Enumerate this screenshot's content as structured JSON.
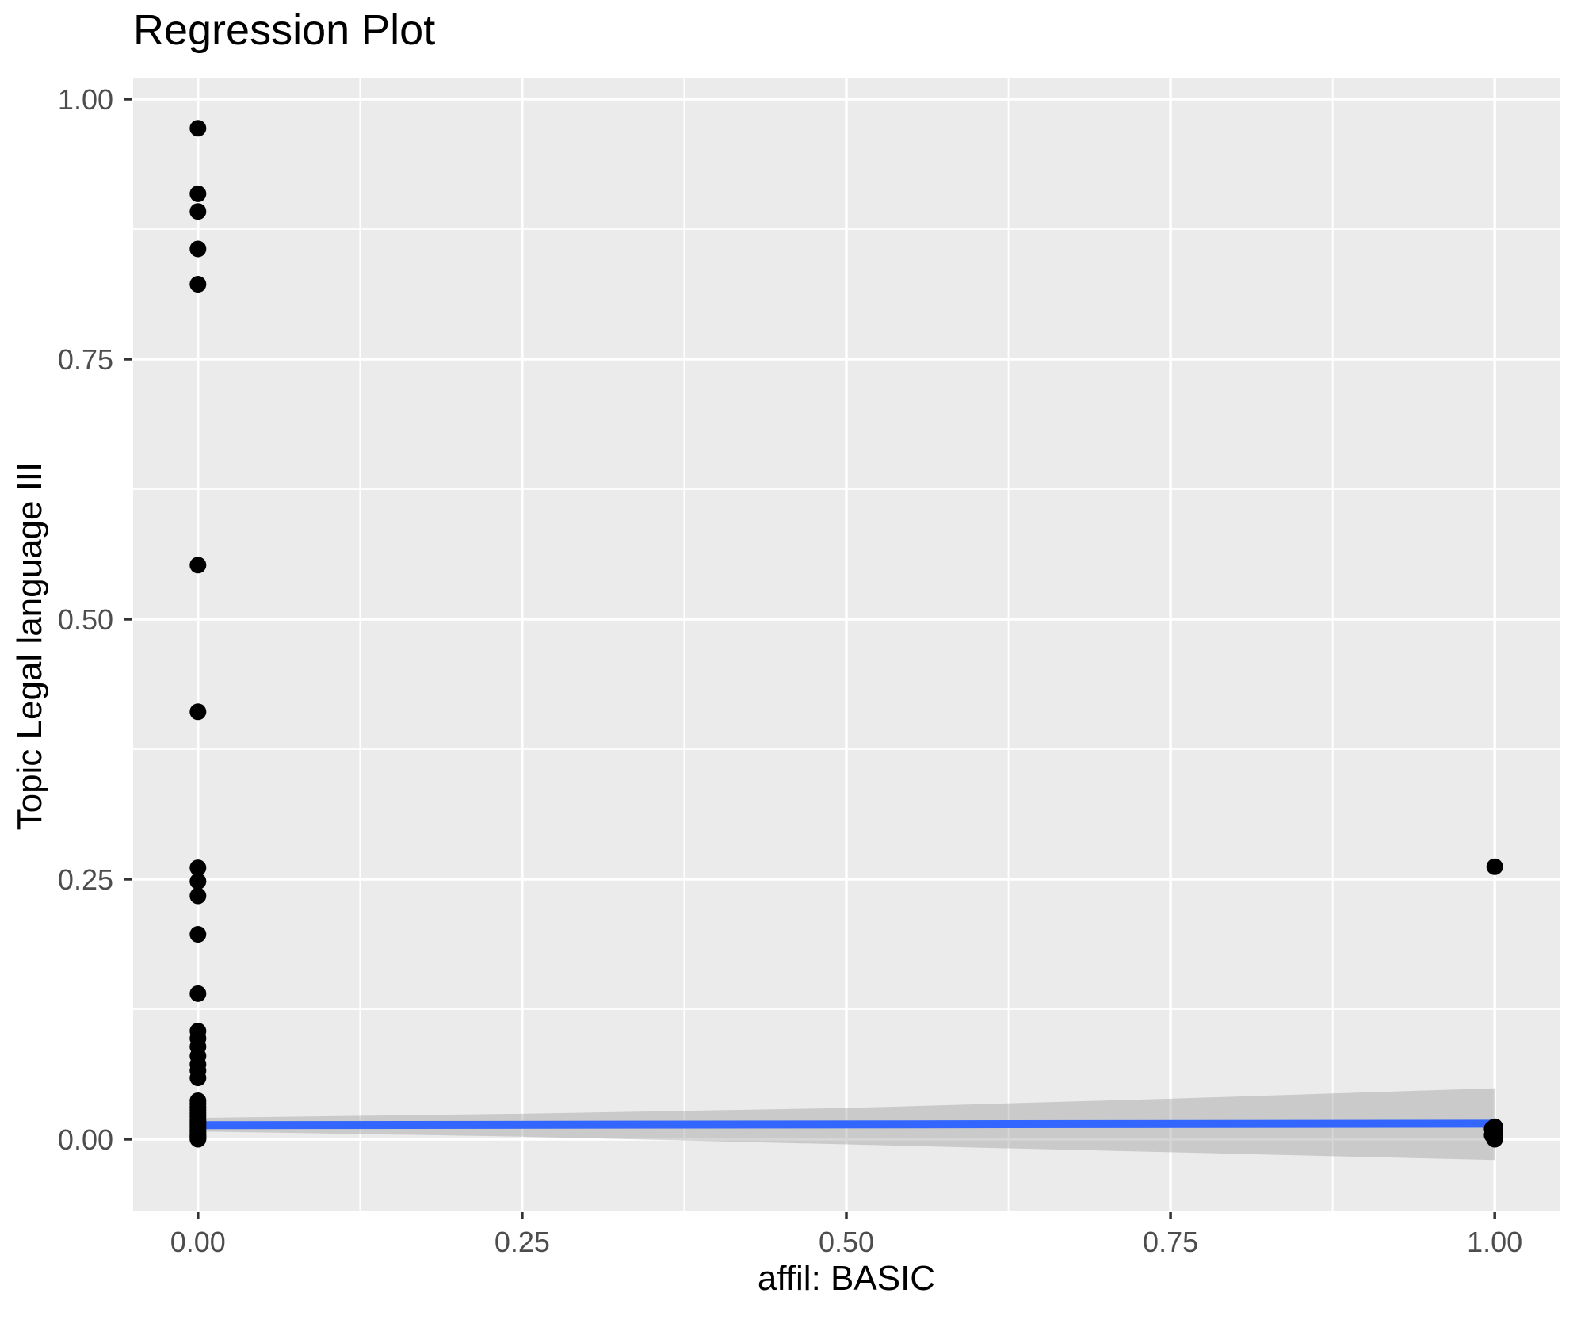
{
  "chart_data": {
    "type": "scatter",
    "title": "Regression Plot",
    "xlabel": "affil: BASIC",
    "ylabel": "Topic Legal language III",
    "xlim": [
      -0.05,
      1.05
    ],
    "ylim": [
      -0.0686,
      1.0206
    ],
    "x_ticks": [
      0.0,
      0.25,
      0.5,
      0.75,
      1.0
    ],
    "y_ticks": [
      0.0,
      0.25,
      0.5,
      0.75,
      1.0
    ],
    "x_tick_labels": [
      "0.00",
      "0.25",
      "0.50",
      "0.75",
      "1.00"
    ],
    "y_tick_labels": [
      "0.00",
      "0.25",
      "0.50",
      "0.75",
      "1.00"
    ],
    "grid": "major+minor",
    "legend": "none",
    "colors": {
      "panel_background": "#EBEBEB",
      "gridline": "#FFFFFF",
      "point": "#000000",
      "regression_line": "#3366FF",
      "confidence_ribbon": "rgba(153,153,153,0.4)",
      "tick_label": "#4D4D4D",
      "tick_mark": "#333333",
      "title_text": "#000000"
    },
    "series": [
      {
        "name": "observations",
        "type": "points",
        "color": "#000000",
        "point_radius": 10.5,
        "points": [
          [
            0,
            0.972
          ],
          [
            0,
            0.909
          ],
          [
            0,
            0.892
          ],
          [
            0,
            0.856
          ],
          [
            0,
            0.822
          ],
          [
            0,
            0.552
          ],
          [
            0,
            0.411
          ],
          [
            0,
            0.261
          ],
          [
            0,
            0.248
          ],
          [
            0,
            0.234
          ],
          [
            0,
            0.197
          ],
          [
            0,
            0.14
          ],
          [
            0,
            0.104
          ],
          [
            0,
            0.097
          ],
          [
            0,
            0.089
          ],
          [
            0,
            0.08
          ],
          [
            0,
            0.072
          ],
          [
            0,
            0.066
          ],
          [
            0,
            0.059
          ],
          [
            0,
            0.037
          ],
          [
            0,
            0.034
          ],
          [
            0,
            0.031
          ],
          [
            0,
            0.028
          ],
          [
            0,
            0.025
          ],
          [
            0,
            0.022
          ],
          [
            0,
            0.019
          ],
          [
            0,
            0.017
          ],
          [
            0,
            0.015
          ],
          [
            0,
            0.013
          ],
          [
            0,
            0.011
          ],
          [
            0,
            0.009
          ],
          [
            0,
            0.007
          ],
          [
            0,
            0.005
          ],
          [
            0,
            0.004
          ],
          [
            0,
            0.003
          ],
          [
            0,
            0.002
          ],
          [
            0,
            0.001
          ],
          [
            0,
            0.0
          ],
          [
            1,
            0.262
          ],
          [
            1,
            0.012
          ],
          [
            0.998,
            0.01
          ],
          [
            1,
            0.008
          ],
          [
            0.998,
            0.004
          ],
          [
            1,
            0.002
          ],
          [
            1,
            0.0
          ]
        ]
      },
      {
        "name": "regression-line",
        "type": "line",
        "color": "#3366FF",
        "stroke_width": 10,
        "points": [
          [
            0,
            0.0135
          ],
          [
            1,
            0.015
          ]
        ]
      },
      {
        "name": "confidence-ribbon",
        "type": "ribbon",
        "color": "rgba(153,153,153,0.4)",
        "x": [
          0,
          0.25,
          0.5,
          0.75,
          1.0
        ],
        "upper": [
          0.0205,
          0.0245,
          0.03,
          0.039,
          0.049
        ],
        "lower": [
          0.0075,
          0.0025,
          -0.005,
          -0.0125,
          -0.02
        ]
      }
    ]
  }
}
